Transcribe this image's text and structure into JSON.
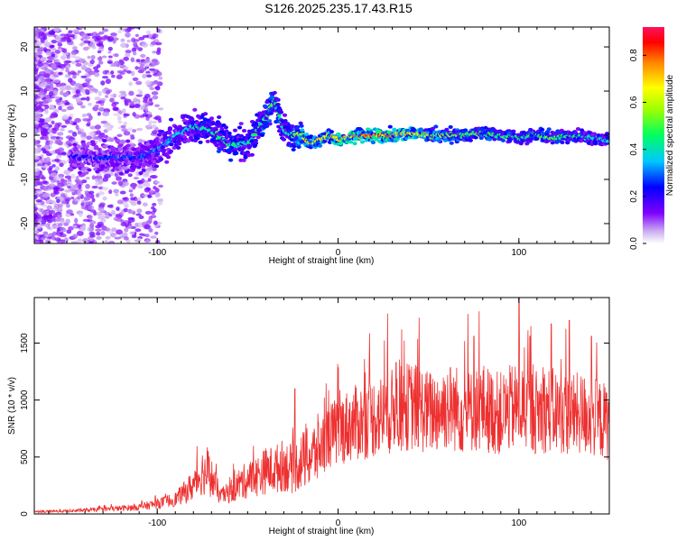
{
  "title": "S126.2025.235.17.43.R15",
  "chart_data": [
    {
      "type": "heatmap",
      "xlabel": "Height of straight line (km)",
      "ylabel": "Frequency (Hz)",
      "xlim": [
        -168,
        150
      ],
      "ylim": [
        -24.5,
        24.5
      ],
      "xticks": [
        -100,
        0,
        100
      ],
      "xtick_labels": [
        "-100",
        "0",
        "100"
      ],
      "yticks": [
        -20,
        -10,
        0,
        10,
        20
      ],
      "ytick_labels": [
        "-20",
        "-10",
        "0",
        "10",
        "20"
      ],
      "colorbar": {
        "label": "Normalized spectral amplitude",
        "range": [
          0.0,
          0.92
        ],
        "ticks": [
          0.0,
          0.2,
          0.4,
          0.6,
          0.8
        ],
        "tick_labels": [
          "0.0",
          "0.2",
          "0.4",
          "0.6",
          "0.8"
        ],
        "colormap": "rainbow-magenta"
      },
      "ridge": {
        "x": [
          -140,
          -125,
          -110,
          -100,
          -90,
          -80,
          -70,
          -60,
          -50,
          -40,
          -35,
          -30,
          -25,
          -20,
          -15,
          -10,
          -5,
          0,
          10,
          20,
          30,
          40,
          50,
          60,
          70,
          80,
          90,
          100,
          110,
          120,
          130,
          140,
          148
        ],
        "frequency": [
          -5,
          -5,
          -5,
          -3.5,
          0,
          2,
          1,
          -2,
          -2,
          4,
          8,
          1,
          0,
          0,
          -2,
          -1,
          0,
          -1,
          0,
          0,
          0,
          0.5,
          0,
          0,
          0,
          0.5,
          0,
          -0.5,
          0,
          -0.5,
          0,
          -0.5,
          -1
        ],
        "amplitude": [
          0.25,
          0.3,
          0.3,
          0.35,
          0.4,
          0.45,
          0.5,
          0.5,
          0.45,
          0.55,
          0.55,
          0.45,
          0.55,
          0.65,
          0.8,
          0.75,
          0.7,
          0.8,
          0.85,
          0.85,
          0.9,
          0.75,
          0.65,
          0.6,
          0.55,
          0.55,
          0.55,
          0.5,
          0.55,
          0.55,
          0.5,
          0.45,
          0.4
        ]
      }
    },
    {
      "type": "line",
      "xlabel": "Height of straight line (km)",
      "ylabel": "SNR (10 * v/v)",
      "xlim": [
        -168,
        150
      ],
      "ylim": [
        0,
        1900
      ],
      "xticks": [
        -100,
        0,
        100
      ],
      "xtick_labels": [
        "-100",
        "0",
        "100"
      ],
      "yticks": [
        0,
        500,
        1000,
        1500
      ],
      "ytick_labels": [
        "0",
        "500",
        "1000",
        "1500"
      ],
      "line_color": "#ee3030",
      "series": [
        {
          "x": [
            -168,
            -150,
            -130,
            -110,
            -100,
            -90,
            -80,
            -75,
            -70,
            -65,
            -60,
            -55,
            -50,
            -45,
            -40,
            -35,
            -30,
            -25,
            -20,
            -15,
            -10,
            -5,
            0,
            5,
            10,
            15,
            20,
            25,
            30,
            35,
            40,
            45,
            50,
            55,
            60,
            65,
            70,
            75,
            80,
            85,
            90,
            95,
            100,
            105,
            110,
            115,
            120,
            125,
            130,
            135,
            140,
            145,
            150
          ],
          "values": [
            20,
            25,
            40,
            60,
            90,
            130,
            250,
            370,
            320,
            150,
            190,
            260,
            300,
            330,
            380,
            390,
            430,
            390,
            470,
            500,
            590,
            680,
            730,
            770,
            800,
            820,
            850,
            870,
            900,
            920,
            950,
            930,
            890,
            910,
            950,
            930,
            890,
            900,
            940,
            900,
            880,
            920,
            940,
            920,
            900,
            920,
            900,
            880,
            870,
            880,
            850,
            830,
            800
          ],
          "spikes": [
            {
              "x": -72,
              "value": 550
            },
            {
              "x": -24,
              "value": 1100
            },
            {
              "x": 32,
              "value": 1330
            },
            {
              "x": 75,
              "value": 1560
            },
            {
              "x": 100,
              "value": 1900
            },
            {
              "x": 106,
              "value": 1560
            },
            {
              "x": 118,
              "value": 1670
            },
            {
              "x": 128,
              "value": 1700
            },
            {
              "x": 140,
              "value": 1560
            }
          ]
        }
      ]
    }
  ]
}
